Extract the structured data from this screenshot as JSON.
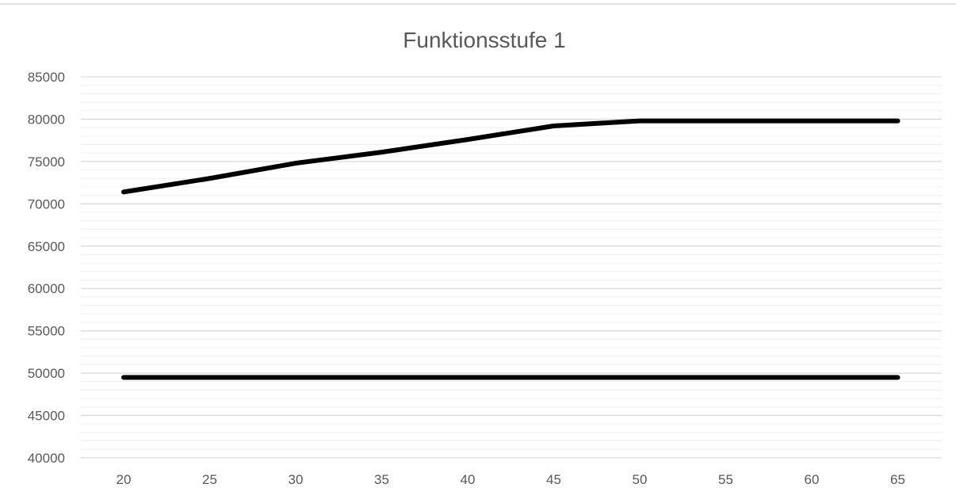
{
  "chart_data": {
    "type": "line",
    "title": "Funktionsstufe 1",
    "xlabel": "",
    "ylabel": "",
    "x": [
      20,
      25,
      30,
      35,
      40,
      45,
      50,
      55,
      60,
      65
    ],
    "x_tick_labels": [
      "20",
      "25",
      "30",
      "35",
      "40",
      "45",
      "50",
      "55",
      "60",
      "65"
    ],
    "y_tick_labels": [
      "40000",
      "45000",
      "50000",
      "55000",
      "60000",
      "65000",
      "70000",
      "75000",
      "80000",
      "85000"
    ],
    "ylim": [
      40000,
      85000
    ],
    "y_major_step": 5000,
    "y_minor_step": 1000,
    "grid": true,
    "legend": "none",
    "series": [
      {
        "values": [
          71400,
          73000,
          74800,
          76100,
          77600,
          79200,
          79800,
          79800,
          79800,
          79800
        ],
        "color": "#000000"
      },
      {
        "values": [
          49500,
          49500,
          49500,
          49500,
          49500,
          49500,
          49500,
          49500,
          49500,
          49500
        ],
        "color": "#000000"
      }
    ],
    "colors": {
      "major_grid": "#d9d9d9",
      "minor_grid": "#efefef",
      "text": "#595959",
      "frame_top": "#d9d9d9"
    }
  }
}
